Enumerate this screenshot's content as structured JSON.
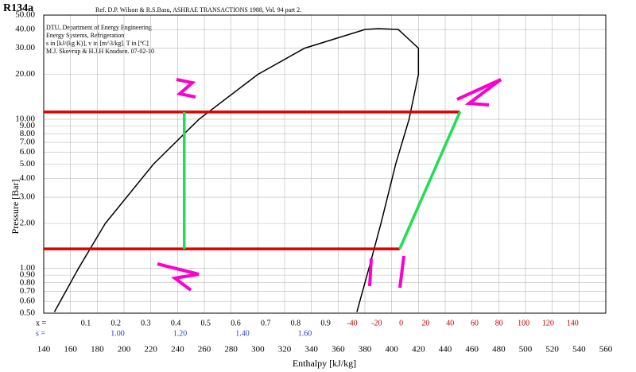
{
  "chart_data": {
    "type": "line",
    "title": "R134a",
    "subtitle": "Ref. D.P. Wilson & R.S.Basu, ASHRAE TRANSACTIONS 1988, Vol. 94 part 2.",
    "info_lines": [
      "DTU, Department of Energy Engineering",
      "Energy Systems, Refrigeration",
      "s in [kJ/(kg K)], v in [m^3/kg], T in [ºC]",
      "M.J. Skovrup & H.J.H Knudsen. 07-02-10"
    ],
    "x_label": "Enthalpy [kJ/kg]",
    "y_label": "Pressure [Bar]",
    "xlim": [
      140,
      560
    ],
    "xticks": [
      140,
      160,
      180,
      200,
      220,
      240,
      260,
      280,
      300,
      320,
      340,
      360,
      380,
      400,
      420,
      440,
      460,
      480,
      500,
      520,
      540,
      560
    ],
    "ylim": [
      0.5,
      50
    ],
    "log_y": true,
    "grid": true,
    "yticks": [
      {
        "value": 0.5,
        "label": "0.50"
      },
      {
        "value": 0.6,
        "label": "0.60"
      },
      {
        "value": 0.7,
        "label": "0.70"
      },
      {
        "value": 0.8,
        "label": "0.80"
      },
      {
        "value": 0.9,
        "label": "0.90"
      },
      {
        "value": 1,
        "label": "1.00"
      },
      {
        "value": 2,
        "label": "2.00"
      },
      {
        "value": 3,
        "label": "3.00"
      },
      {
        "value": 4,
        "label": "4.00"
      },
      {
        "value": 5,
        "label": "5.00"
      },
      {
        "value": 6,
        "label": "6.00"
      },
      {
        "value": 7,
        "label": "7.00"
      },
      {
        "value": 8,
        "label": "8.00"
      },
      {
        "value": 9,
        "label": "9.00"
      },
      {
        "value": 10,
        "label": "10.00"
      },
      {
        "value": 20,
        "label": "20.00"
      },
      {
        "value": 30,
        "label": "30.00"
      },
      {
        "value": 40,
        "label": "40.00"
      },
      {
        "value": 50,
        "label": "50.00"
      }
    ],
    "quality_prefix": "x =",
    "quality_labels": [
      "0.1",
      "0.2",
      "0.3",
      "0.4",
      "0.5",
      "0.6",
      "0.7",
      "0.8",
      "0.9"
    ],
    "entropy_prefix": "s =",
    "entropy_labels": [
      "1.00",
      "1.20",
      "1.40",
      "1.60"
    ],
    "temperature_labels": [
      "-40",
      "-20",
      "0",
      "20",
      "40",
      "60",
      "80",
      "100",
      "120",
      "140"
    ],
    "series": [
      {
        "color": "#000000",
        "x": [
          148,
          166,
          186,
          222,
          256,
          300,
          335,
          380,
          390,
          405,
          420,
          420,
          413,
          403,
          392,
          383,
          374
        ],
        "values": [
          0.51,
          1,
          2,
          5,
          10,
          20,
          30,
          40,
          40.6,
          40,
          30,
          20,
          10,
          5,
          2,
          1,
          0.51
        ]
      },
      {
        "color": "#e00000",
        "x": [
          140,
          451
        ],
        "values": [
          11.2,
          11.2
        ]
      },
      {
        "color": "#e00000",
        "x": [
          140,
          406
        ],
        "values": [
          1.35,
          1.35
        ]
      },
      {
        "color": "#22dd55",
        "x": [
          406,
          451
        ],
        "values": [
          1.35,
          11.2
        ]
      },
      {
        "color": "#22dd55",
        "x": [
          245,
          245
        ],
        "values": [
          11.2,
          1.35
        ]
      }
    ]
  }
}
